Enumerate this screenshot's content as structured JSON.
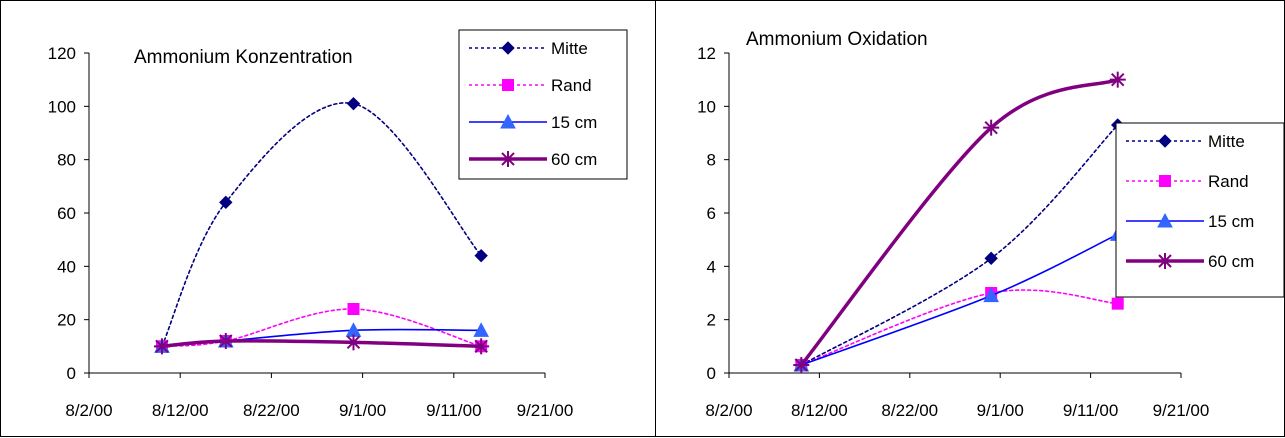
{
  "chart_data": [
    {
      "type": "line",
      "title": "Ammonium Konzentration",
      "xlabel": "",
      "ylabel": "",
      "x_ticks": [
        "8/2/00",
        "8/12/00",
        "8/22/00",
        "9/1/00",
        "9/11/00",
        "9/21/00"
      ],
      "xlim": [
        "2000-08-02",
        "2000-09-21"
      ],
      "ylim": [
        0,
        120
      ],
      "y_ticks": [
        0,
        20,
        40,
        60,
        80,
        100,
        120
      ],
      "grid": false,
      "legend_position": "top-right",
      "series": [
        {
          "name": "Mitte",
          "color": "#000080",
          "style": "dotted",
          "marker": "diamond",
          "x": [
            "2000-08-10",
            "2000-08-17",
            "2000-08-31",
            "2000-09-14"
          ],
          "values": [
            10,
            64,
            101,
            44
          ]
        },
        {
          "name": "Rand",
          "color": "#FF00FF",
          "style": "dotted",
          "marker": "square",
          "x": [
            "2000-08-10",
            "2000-08-17",
            "2000-08-31",
            "2000-09-14"
          ],
          "values": [
            10,
            12,
            24,
            10
          ]
        },
        {
          "name": "15 cm",
          "color": "#0000FF",
          "style": "solid",
          "marker": "triangle",
          "x": [
            "2000-08-10",
            "2000-08-17",
            "2000-08-31",
            "2000-09-14"
          ],
          "values": [
            10,
            12,
            16,
            16
          ]
        },
        {
          "name": "60 cm",
          "color": "#800080",
          "style": "thick",
          "marker": "asterisk",
          "x": [
            "2000-08-10",
            "2000-08-17",
            "2000-08-31",
            "2000-09-14"
          ],
          "values": [
            10,
            12,
            11.5,
            10
          ]
        }
      ]
    },
    {
      "type": "line",
      "title": "Ammonium Oxidation",
      "xlabel": "",
      "ylabel": "",
      "x_ticks": [
        "8/2/00",
        "8/12/00",
        "8/22/00",
        "9/1/00",
        "9/11/00",
        "9/21/00"
      ],
      "xlim": [
        "2000-08-02",
        "2000-09-21"
      ],
      "ylim": [
        0,
        12
      ],
      "y_ticks": [
        0,
        2,
        4,
        6,
        8,
        10,
        12
      ],
      "grid": false,
      "legend_position": "right",
      "series": [
        {
          "name": "Mitte",
          "color": "#000080",
          "style": "dotted",
          "marker": "diamond",
          "x": [
            "2000-08-10",
            "2000-08-31",
            "2000-09-14"
          ],
          "values": [
            0.3,
            4.3,
            9.3
          ]
        },
        {
          "name": "Rand",
          "color": "#FF00FF",
          "style": "dotted",
          "marker": "square",
          "x": [
            "2000-08-10",
            "2000-08-31",
            "2000-09-14"
          ],
          "values": [
            0.3,
            3.0,
            2.6
          ]
        },
        {
          "name": "15 cm",
          "color": "#0000FF",
          "style": "solid",
          "marker": "triangle",
          "x": [
            "2000-08-10",
            "2000-08-31",
            "2000-09-14"
          ],
          "values": [
            0.3,
            2.9,
            5.2
          ]
        },
        {
          "name": "60 cm",
          "color": "#800080",
          "style": "thick",
          "marker": "asterisk",
          "x": [
            "2000-08-10",
            "2000-08-31",
            "2000-09-14"
          ],
          "values": [
            0.3,
            9.2,
            11.0
          ]
        }
      ]
    }
  ]
}
